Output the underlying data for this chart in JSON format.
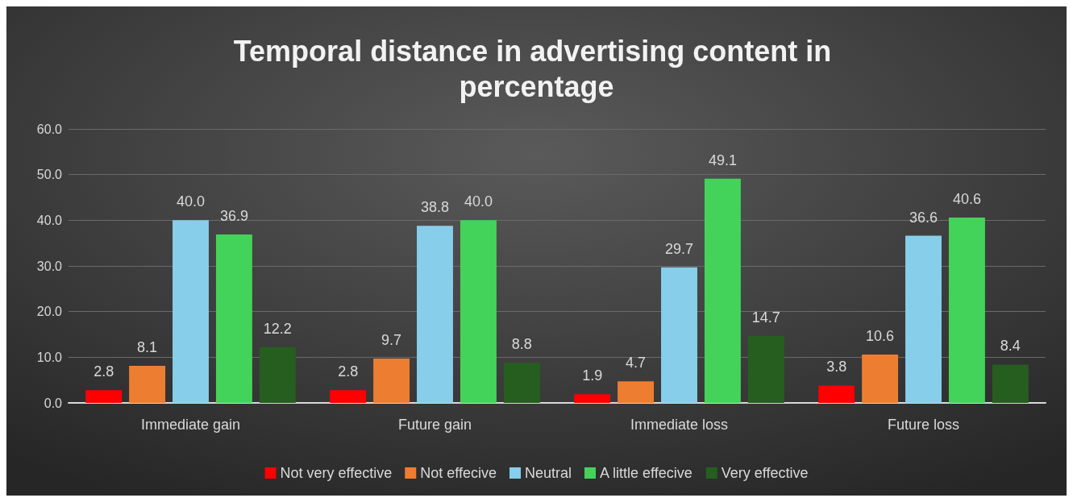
{
  "chart_data": {
    "type": "bar",
    "title": "Temporal distance in advertising content in percentage",
    "categories": [
      "Immediate gain",
      "Future gain",
      "Immediate loss",
      "Future loss"
    ],
    "series": [
      {
        "name": "Not very effective",
        "color": "#ff0000",
        "values": [
          2.8,
          2.8,
          1.9,
          3.8
        ],
        "value_labels": [
          "2.8",
          "2.8",
          "1.9",
          "3.8"
        ]
      },
      {
        "name": "Not effecive",
        "color": "#ed7d31",
        "values": [
          8.1,
          9.7,
          4.7,
          10.6
        ],
        "value_labels": [
          "8.1",
          "9.7",
          "4.7",
          "10.6"
        ]
      },
      {
        "name": "Neutral",
        "color": "#87ceeb",
        "values": [
          40.0,
          38.8,
          29.7,
          36.6
        ],
        "value_labels": [
          "40.0",
          "38.8",
          "29.7",
          "36.6"
        ]
      },
      {
        "name": "A little effecive",
        "color": "#44d35a",
        "values": [
          36.9,
          40.0,
          49.1,
          40.6
        ],
        "value_labels": [
          "36.9",
          "40.0",
          "49.1",
          "40.6"
        ]
      },
      {
        "name": "Very effective",
        "color": "#255e1f",
        "values": [
          12.2,
          8.8,
          14.7,
          8.4
        ],
        "value_labels": [
          "12.2",
          "8.8",
          "14.7",
          "8.4"
        ]
      }
    ],
    "ylim": [
      0,
      60
    ],
    "yticks": [
      {
        "value": 0,
        "label": "0.0"
      },
      {
        "value": 10,
        "label": "10.0"
      },
      {
        "value": 20,
        "label": "20.0"
      },
      {
        "value": 30,
        "label": "30.0"
      },
      {
        "value": 40,
        "label": "40.0"
      },
      {
        "value": 50,
        "label": "50.0"
      },
      {
        "value": 60,
        "label": "60.0"
      }
    ],
    "grid": "y",
    "legend": "bottom"
  }
}
